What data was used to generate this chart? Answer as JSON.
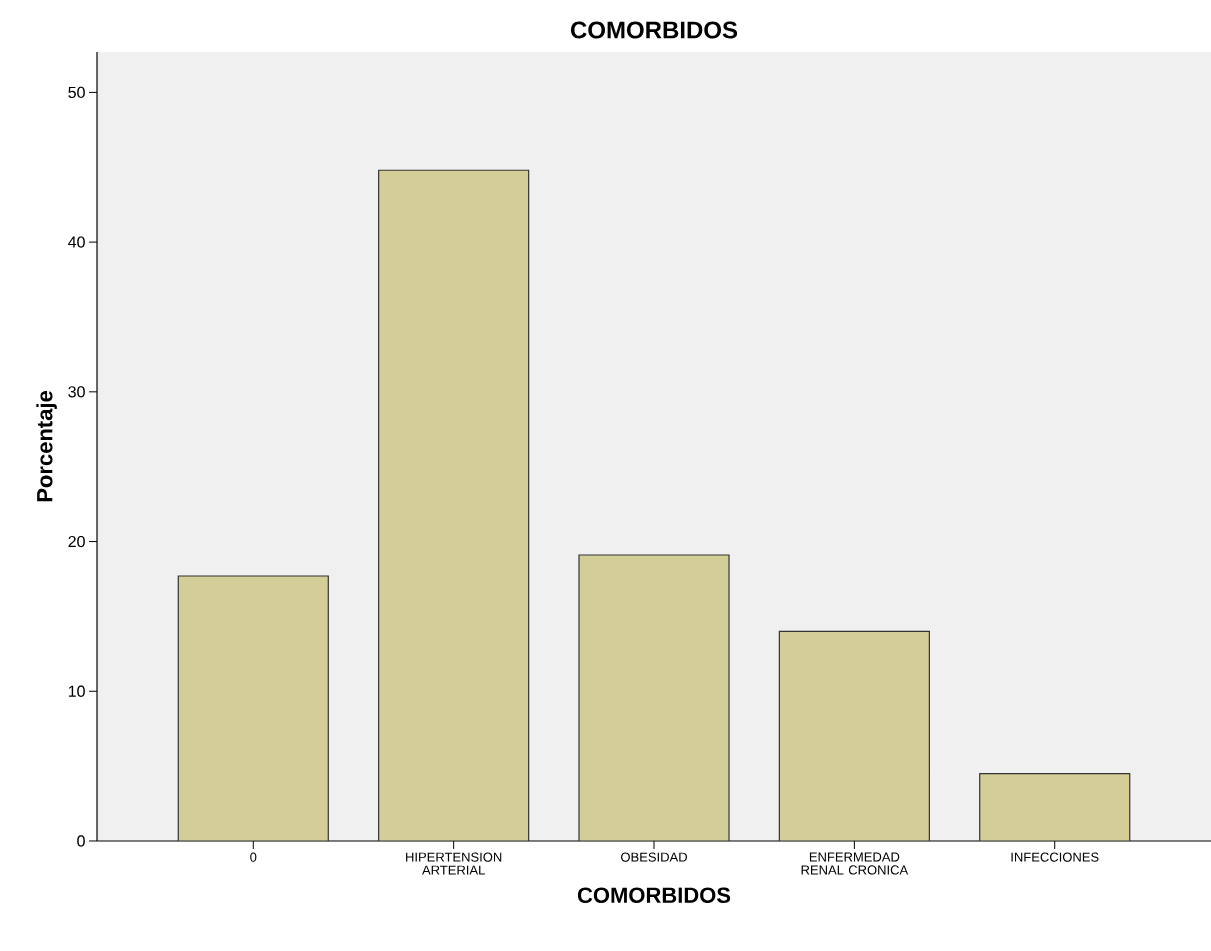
{
  "chart_data": {
    "type": "bar",
    "title": "COMORBIDOS",
    "xlabel": "COMORBIDOS",
    "ylabel": "Porcentaje",
    "categories": [
      "0",
      "HIPERTENSION ARTERIAL",
      "OBESIDAD",
      "ENFERMEDAD RENAL CRONICA",
      "INFECCIONES"
    ],
    "values": [
      17.7,
      44.8,
      19.1,
      14.0,
      4.5
    ],
    "color": "#d3ce97",
    "ylim": [
      0,
      52.7
    ],
    "yticks": [
      0,
      10,
      20,
      30,
      40,
      50
    ],
    "grid": false
  }
}
